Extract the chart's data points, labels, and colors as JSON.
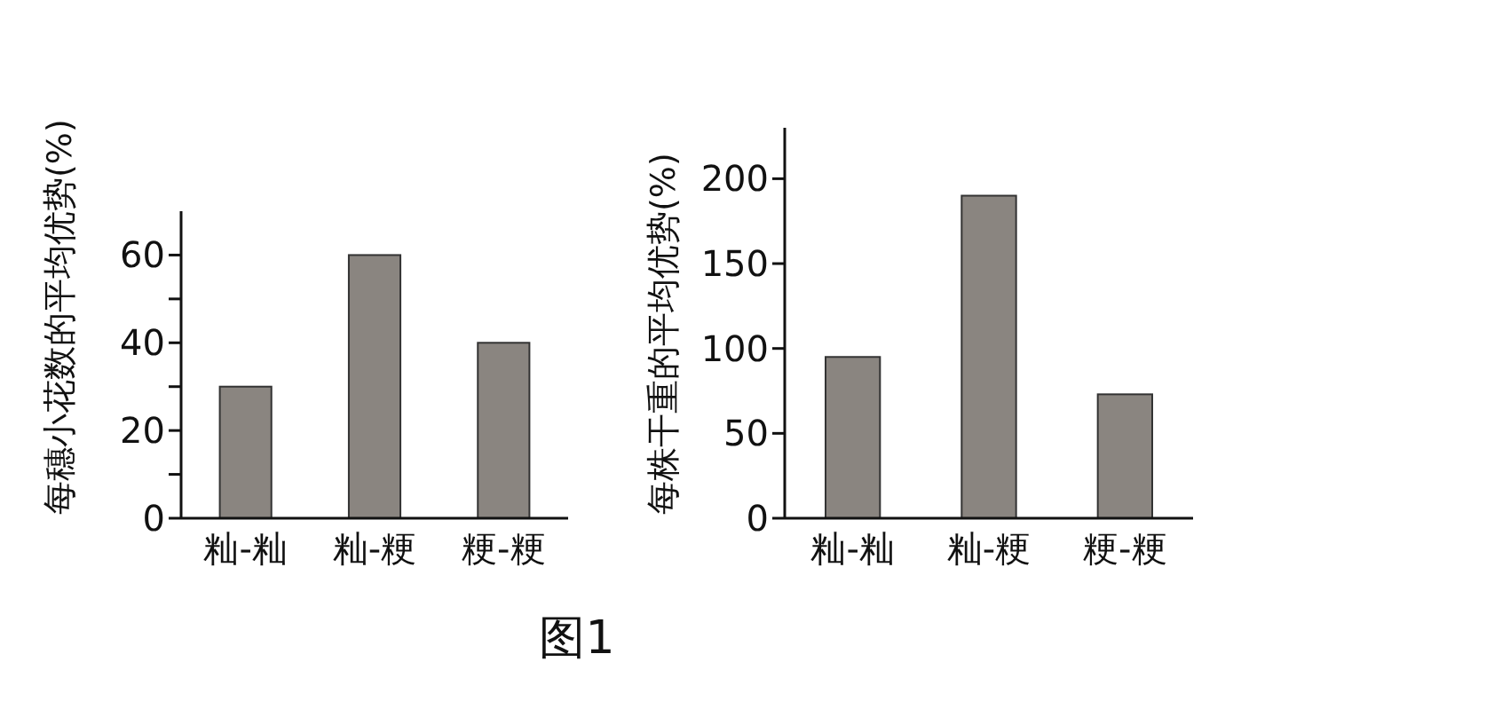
{
  "chart_data": [
    {
      "type": "bar",
      "categories": [
        "籼-籼",
        "籼-粳",
        "粳-粳"
      ],
      "values": [
        30,
        60,
        40
      ],
      "color": "#8a8580",
      "ylabel": "每穗小花数的平均优势(%)",
      "ylim": [
        0,
        70
      ],
      "yticks": [
        0,
        {
          "value": 10,
          "label": null
        },
        20,
        {
          "value": 30,
          "label": null
        },
        40,
        {
          "value": 50,
          "label": null
        },
        60
      ],
      "annotations": [
        "图1"
      ]
    },
    {
      "type": "bar",
      "categories": [
        "籼-籼",
        "籼-粳",
        "粳-粳"
      ],
      "values": [
        95,
        190,
        73
      ],
      "color": "#8a8580",
      "ylabel": "每株干重的平均优势(%)",
      "ylim": [
        0,
        230
      ],
      "yticks": [
        0,
        50,
        100,
        150,
        200
      ]
    }
  ]
}
